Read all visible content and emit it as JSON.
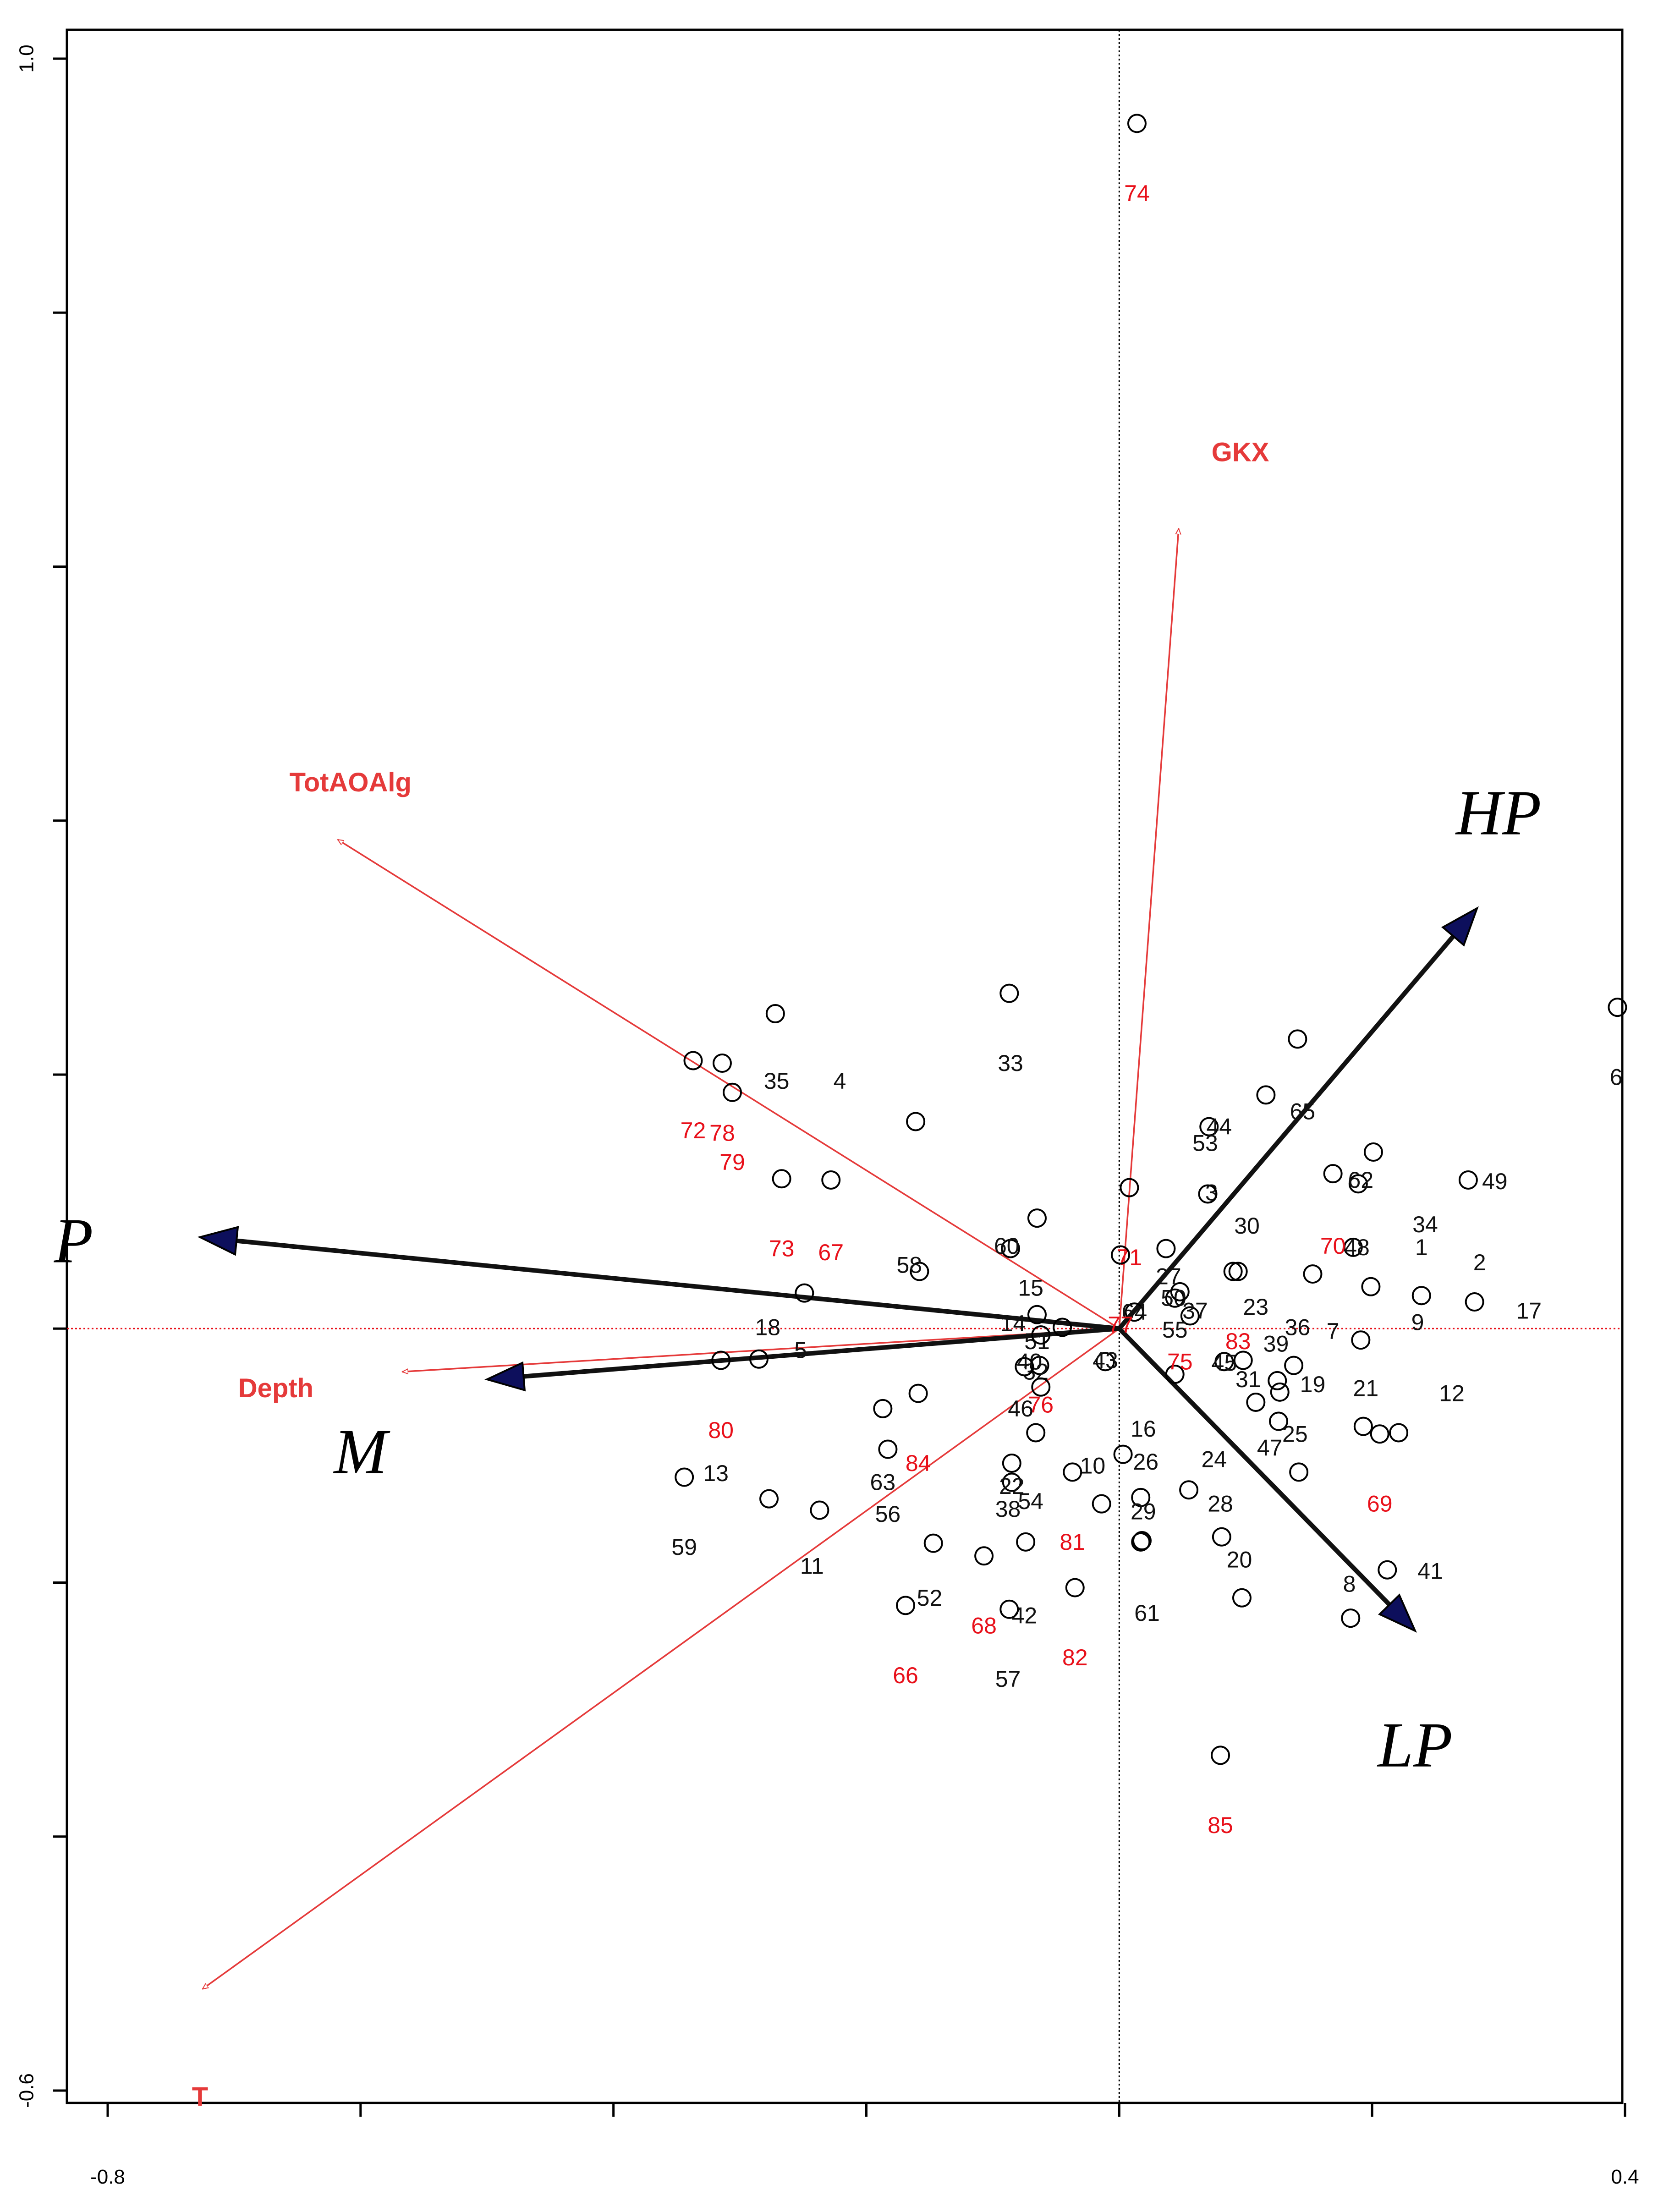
{
  "chart_data": {
    "type": "scatter",
    "title": "",
    "xlabel": "",
    "ylabel": "",
    "xlim": [
      -0.8,
      0.4
    ],
    "ylim": [
      -0.6,
      1.0
    ],
    "x_tick_labels": [
      {
        "value": -0.8,
        "label": "-0.8"
      },
      {
        "value": 0.4,
        "label": "0.4"
      }
    ],
    "y_tick_labels": [
      {
        "value": 1.0,
        "label": "1.0"
      },
      {
        "value": -0.6,
        "label": "-0.6"
      }
    ],
    "x_ticks": [
      -0.8,
      -0.6,
      -0.4,
      -0.2,
      0.0,
      0.2,
      0.4
    ],
    "y_ticks": [
      1.0,
      0.8,
      0.6,
      0.4,
      0.2,
      0.0,
      -0.2,
      -0.4,
      -0.6
    ],
    "colors": {
      "sample_black": "#111111",
      "sample_red": "#e8101a",
      "env_arrow": "#e53a3a",
      "group_arrow": "#111111",
      "arrow_head": "#0d0f5c"
    },
    "group_vectors": [
      {
        "name": "HP",
        "x": 0.283,
        "y": 0.331
      },
      {
        "name": "LP",
        "x": 0.234,
        "y": -0.238
      },
      {
        "name": "P",
        "x": -0.727,
        "y": 0.072
      },
      {
        "name": "M",
        "x": -0.5,
        "y": -0.04
      }
    ],
    "env_vectors": [
      {
        "name": "GKX",
        "x": 0.047,
        "y": 0.63
      },
      {
        "name": "TotAOAlg",
        "x": -0.618,
        "y": 0.385
      },
      {
        "name": "Depth",
        "x": -0.567,
        "y": -0.034
      },
      {
        "name": "T",
        "x": -0.725,
        "y": -0.52
      }
    ],
    "samples": [
      {
        "label": "1",
        "x": 0.199,
        "y": 0.033,
        "group": "black"
      },
      {
        "label": "2",
        "x": 0.239,
        "y": 0.026,
        "group": "black"
      },
      {
        "label": "3",
        "x": 0.071,
        "y": 0.159,
        "group": "black"
      },
      {
        "label": "4",
        "x": -0.161,
        "y": 0.163,
        "group": "black"
      },
      {
        "label": "5",
        "x": -0.249,
        "y": 0.028,
        "group": "black"
      },
      {
        "label": "6",
        "x": 0.394,
        "y": 0.253,
        "group": "black"
      },
      {
        "label": "7",
        "x": 0.153,
        "y": 0.043,
        "group": "black"
      },
      {
        "label": "8",
        "x": 0.183,
        "y": -0.228,
        "group": "black"
      },
      {
        "label": "9",
        "x": 0.191,
        "y": -0.009,
        "group": "black"
      },
      {
        "label": "10",
        "x": -0.014,
        "y": -0.138,
        "group": "black"
      },
      {
        "label": "11",
        "x": -0.237,
        "y": -0.143,
        "group": "black"
      },
      {
        "label": "12",
        "x": 0.221,
        "y": -0.082,
        "group": "black"
      },
      {
        "label": "13",
        "x": -0.277,
        "y": -0.134,
        "group": "black"
      },
      {
        "label": "14",
        "x": -0.063,
        "y": -0.029,
        "group": "black"
      },
      {
        "label": "15",
        "x": -0.065,
        "y": 0.087,
        "group": "black"
      },
      {
        "label": "16",
        "x": 0.003,
        "y": -0.099,
        "group": "black"
      },
      {
        "label": "17",
        "x": 0.281,
        "y": 0.021,
        "group": "black"
      },
      {
        "label": "18",
        "x": -0.285,
        "y": -0.024,
        "group": "black"
      },
      {
        "label": "19",
        "x": 0.126,
        "y": -0.073,
        "group": "black"
      },
      {
        "label": "20",
        "x": 0.097,
        "y": -0.212,
        "group": "black"
      },
      {
        "label": "21",
        "x": 0.193,
        "y": -0.077,
        "group": "black"
      },
      {
        "label": "22",
        "x": -0.085,
        "y": -0.121,
        "group": "black"
      },
      {
        "label": "23",
        "x": 0.098,
        "y": -0.025,
        "group": "black"
      },
      {
        "label": "24",
        "x": 0.055,
        "y": -0.127,
        "group": "black"
      },
      {
        "label": "25",
        "x": 0.142,
        "y": -0.113,
        "group": "black"
      },
      {
        "label": "26",
        "x": 0.017,
        "y": -0.133,
        "group": "black"
      },
      {
        "label": "27",
        "x": 0.037,
        "y": 0.063,
        "group": "black"
      },
      {
        "label": "28",
        "x": 0.081,
        "y": -0.164,
        "group": "black"
      },
      {
        "label": "29",
        "x": 0.017,
        "y": -0.168,
        "group": "black"
      },
      {
        "label": "30",
        "x": 0.09,
        "y": 0.045,
        "group": "black"
      },
      {
        "label": "31",
        "x": 0.108,
        "y": -0.058,
        "group": "black"
      },
      {
        "label": "32",
        "x": -0.065,
        "y": 0.011,
        "group": "black"
      },
      {
        "label": "33",
        "x": -0.087,
        "y": 0.264,
        "group": "black"
      },
      {
        "label": "34",
        "x": 0.201,
        "y": 0.139,
        "group": "black"
      },
      {
        "label": "35",
        "x": -0.272,
        "y": 0.248,
        "group": "black"
      },
      {
        "label": "36",
        "x": 0.138,
        "y": -0.029,
        "group": "black"
      },
      {
        "label": "37",
        "x": 0.056,
        "y": 0.01,
        "group": "black"
      },
      {
        "label": "38",
        "x": -0.085,
        "y": -0.106,
        "group": "black"
      },
      {
        "label": "39",
        "x": 0.127,
        "y": -0.05,
        "group": "black"
      },
      {
        "label": "40",
        "x": -0.045,
        "y": 0.001,
        "group": "black"
      },
      {
        "label": "41",
        "x": 0.212,
        "y": -0.19,
        "group": "black"
      },
      {
        "label": "42",
        "x": -0.074,
        "y": -0.168,
        "group": "black"
      },
      {
        "label": "43",
        "x": -0.011,
        "y": -0.026,
        "group": "black"
      },
      {
        "label": "44",
        "x": 0.116,
        "y": 0.184,
        "group": "black"
      },
      {
        "label": "45",
        "x": 0.083,
        "y": -0.026,
        "group": "black"
      },
      {
        "label": "46",
        "x": -0.075,
        "y": -0.03,
        "group": "black"
      },
      {
        "label": "47",
        "x": 0.125,
        "y": -0.041,
        "group": "black"
      },
      {
        "label": "48",
        "x": 0.185,
        "y": 0.064,
        "group": "black"
      },
      {
        "label": "49",
        "x": 0.276,
        "y": 0.117,
        "group": "black"
      },
      {
        "label": "50",
        "x": 0.044,
        "y": 0.024,
        "group": "black"
      },
      {
        "label": "51",
        "x": -0.062,
        "y": -0.046,
        "group": "black"
      },
      {
        "label": "52",
        "x": -0.147,
        "y": -0.169,
        "group": "black"
      },
      {
        "label": "53",
        "x": 0.07,
        "y": 0.106,
        "group": "black"
      },
      {
        "label": "54",
        "x": -0.066,
        "y": -0.082,
        "group": "black"
      },
      {
        "label": "55",
        "x": 0.044,
        "y": -0.036,
        "group": "black"
      },
      {
        "label": "56",
        "x": -0.183,
        "y": -0.095,
        "group": "black"
      },
      {
        "label": "57",
        "x": -0.087,
        "y": -0.221,
        "group": "black"
      },
      {
        "label": "58",
        "x": -0.158,
        "y": 0.045,
        "group": "black"
      },
      {
        "label": "59",
        "x": -0.344,
        "y": -0.117,
        "group": "black"
      },
      {
        "label": "60",
        "x": -0.086,
        "y": 0.063,
        "group": "black"
      },
      {
        "label": "61",
        "x": 0.018,
        "y": -0.167,
        "group": "black"
      },
      {
        "label": "62",
        "x": 0.189,
        "y": 0.114,
        "group": "black"
      },
      {
        "label": "63",
        "x": -0.187,
        "y": -0.063,
        "group": "black"
      },
      {
        "label": "64",
        "x": 0.012,
        "y": 0.013,
        "group": "black"
      },
      {
        "label": "65",
        "x": 0.141,
        "y": 0.228,
        "group": "black"
      },
      {
        "label": "66",
        "x": -0.169,
        "y": -0.218,
        "group": "red"
      },
      {
        "label": "67",
        "x": -0.228,
        "y": 0.117,
        "group": "red"
      },
      {
        "label": "68",
        "x": -0.107,
        "y": -0.179,
        "group": "red"
      },
      {
        "label": "69",
        "x": 0.206,
        "y": -0.083,
        "group": "red"
      },
      {
        "label": "70",
        "x": 0.169,
        "y": 0.122,
        "group": "red"
      },
      {
        "label": "71",
        "x": 0.008,
        "y": 0.111,
        "group": "red"
      },
      {
        "label": "72",
        "x": -0.337,
        "y": 0.211,
        "group": "red"
      },
      {
        "label": "73",
        "x": -0.267,
        "y": 0.118,
        "group": "red"
      },
      {
        "label": "74",
        "x": 0.014,
        "y": 0.949,
        "group": "red"
      },
      {
        "label": "75",
        "x": 0.048,
        "y": 0.029,
        "group": "red"
      },
      {
        "label": "76",
        "x": -0.062,
        "y": -0.005,
        "group": "red"
      },
      {
        "label": "77",
        "x": 0.001,
        "y": 0.058,
        "group": "red"
      },
      {
        "label": "78",
        "x": -0.314,
        "y": 0.209,
        "group": "red"
      },
      {
        "label": "79",
        "x": -0.306,
        "y": 0.186,
        "group": "red"
      },
      {
        "label": "80",
        "x": -0.315,
        "y": -0.025,
        "group": "red"
      },
      {
        "label": "81",
        "x": -0.037,
        "y": -0.113,
        "group": "red"
      },
      {
        "label": "82",
        "x": -0.035,
        "y": -0.204,
        "group": "red"
      },
      {
        "label": "83",
        "x": 0.094,
        "y": 0.045,
        "group": "red"
      },
      {
        "label": "84",
        "x": -0.159,
        "y": -0.051,
        "group": "red"
      },
      {
        "label": "85",
        "x": 0.08,
        "y": -0.336,
        "group": "red"
      }
    ]
  }
}
